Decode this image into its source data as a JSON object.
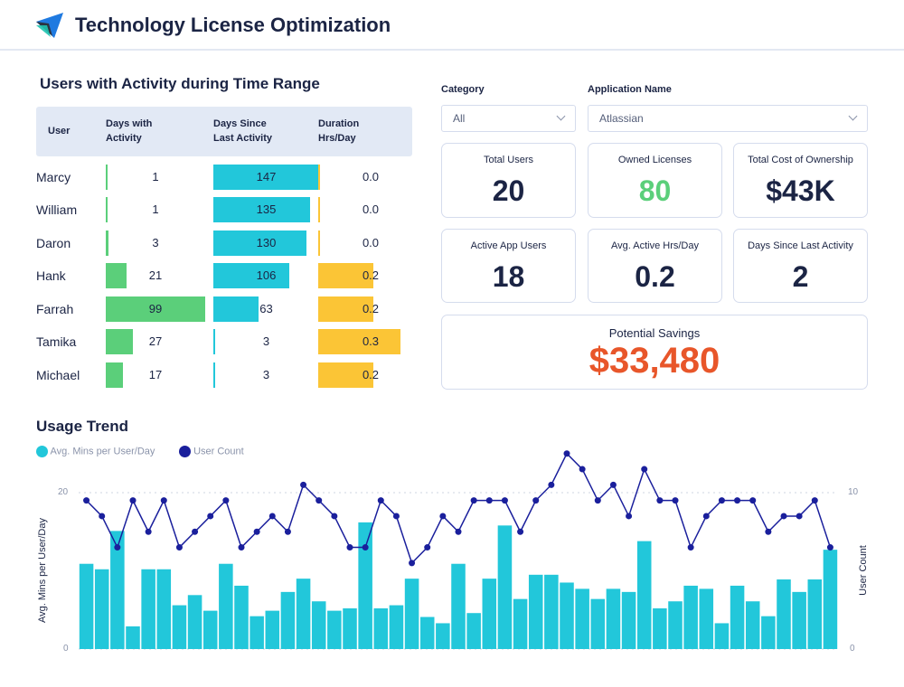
{
  "header": {
    "title": "Technology License Optimization"
  },
  "table": {
    "title": "Users with Activity during Time Range",
    "columns": [
      "User",
      "Days with Activity",
      "Days Since Last Activity",
      "Duration Hrs/Day"
    ],
    "rows": [
      {
        "user": "Marcy",
        "days_with": 1,
        "days_since": 147,
        "duration": "0.0"
      },
      {
        "user": "William",
        "days_with": 1,
        "days_since": 135,
        "duration": "0.0"
      },
      {
        "user": "Daron",
        "days_with": 3,
        "days_since": 130,
        "duration": "0.0"
      },
      {
        "user": "Hank",
        "days_with": 21,
        "days_since": 106,
        "duration": "0.2"
      },
      {
        "user": "Farrah",
        "days_with": 99,
        "days_since": 63,
        "duration": "0.2"
      },
      {
        "user": "Tamika",
        "days_with": 27,
        "days_since": 3,
        "duration": "0.3"
      },
      {
        "user": "Michael",
        "days_with": 17,
        "days_since": 3,
        "duration": "0.2"
      }
    ]
  },
  "filters": {
    "category_label": "Category",
    "category_value": "All",
    "app_label": "Application Name",
    "app_value": "Atlassian"
  },
  "kpis": [
    {
      "label": "Total Users",
      "value": "20"
    },
    {
      "label": "Owned Licenses",
      "value": "80"
    },
    {
      "label": "Total Cost of Ownership",
      "value": "$43K"
    },
    {
      "label": "Active App Users",
      "value": "18"
    },
    {
      "label": "Avg. Active Hrs/Day",
      "value": "0.2"
    },
    {
      "label": "Days Since Last Activity",
      "value": "2"
    }
  ],
  "savings": {
    "label": "Potential Savings",
    "value": "$33,480"
  },
  "colors": {
    "green": "#5bcf7a",
    "cyan": "#22c7da",
    "yellow": "#fbc536",
    "navy": "#1a1f9c",
    "orange": "#e8562a"
  },
  "chart_data": {
    "type": "bar+line",
    "title": "Usage Trend",
    "legend": [
      "Avg. Mins per User/Day",
      "User Count"
    ],
    "ylabel": "Avg. Mins per User/Day",
    "y2label": "User Count",
    "ylim": [
      0,
      20
    ],
    "y2lim": [
      0,
      10
    ],
    "yticks": [
      "0",
      "20"
    ],
    "y2ticks": [
      "0",
      "10"
    ],
    "series": [
      {
        "name": "Avg. Mins per User/Day",
        "type": "bar",
        "values": [
          10.9,
          10.2,
          15.1,
          2.9,
          10.2,
          10.2,
          5.6,
          6.9,
          4.9,
          10.9,
          8.1,
          4.2,
          4.9,
          7.3,
          9.0,
          6.1,
          4.9,
          5.2,
          16.2,
          5.2,
          5.6,
          9.0,
          4.1,
          3.3,
          10.9,
          4.6,
          9.0,
          15.8,
          6.4,
          9.5,
          9.5,
          8.5,
          7.7,
          6.4,
          7.7,
          7.3,
          13.8,
          5.2,
          6.1,
          8.1,
          7.7,
          3.3,
          8.1,
          6.1,
          4.2,
          8.9,
          7.3,
          8.9,
          12.7
        ]
      },
      {
        "name": "User Count",
        "type": "line",
        "values": [
          9.5,
          8.5,
          6.5,
          9.5,
          7.5,
          9.5,
          6.5,
          7.5,
          8.5,
          9.5,
          6.5,
          7.5,
          8.5,
          7.5,
          10.5,
          9.5,
          8.5,
          6.5,
          6.5,
          9.5,
          8.5,
          5.5,
          6.5,
          8.5,
          7.5,
          9.5,
          9.5,
          9.5,
          7.5,
          9.5,
          10.5,
          12.5,
          11.5,
          9.5,
          10.5,
          8.5,
          11.5,
          9.5,
          9.5,
          6.5,
          8.5,
          9.5,
          9.5,
          9.5,
          7.5,
          8.5,
          8.5,
          9.5,
          6.5
        ]
      }
    ]
  }
}
